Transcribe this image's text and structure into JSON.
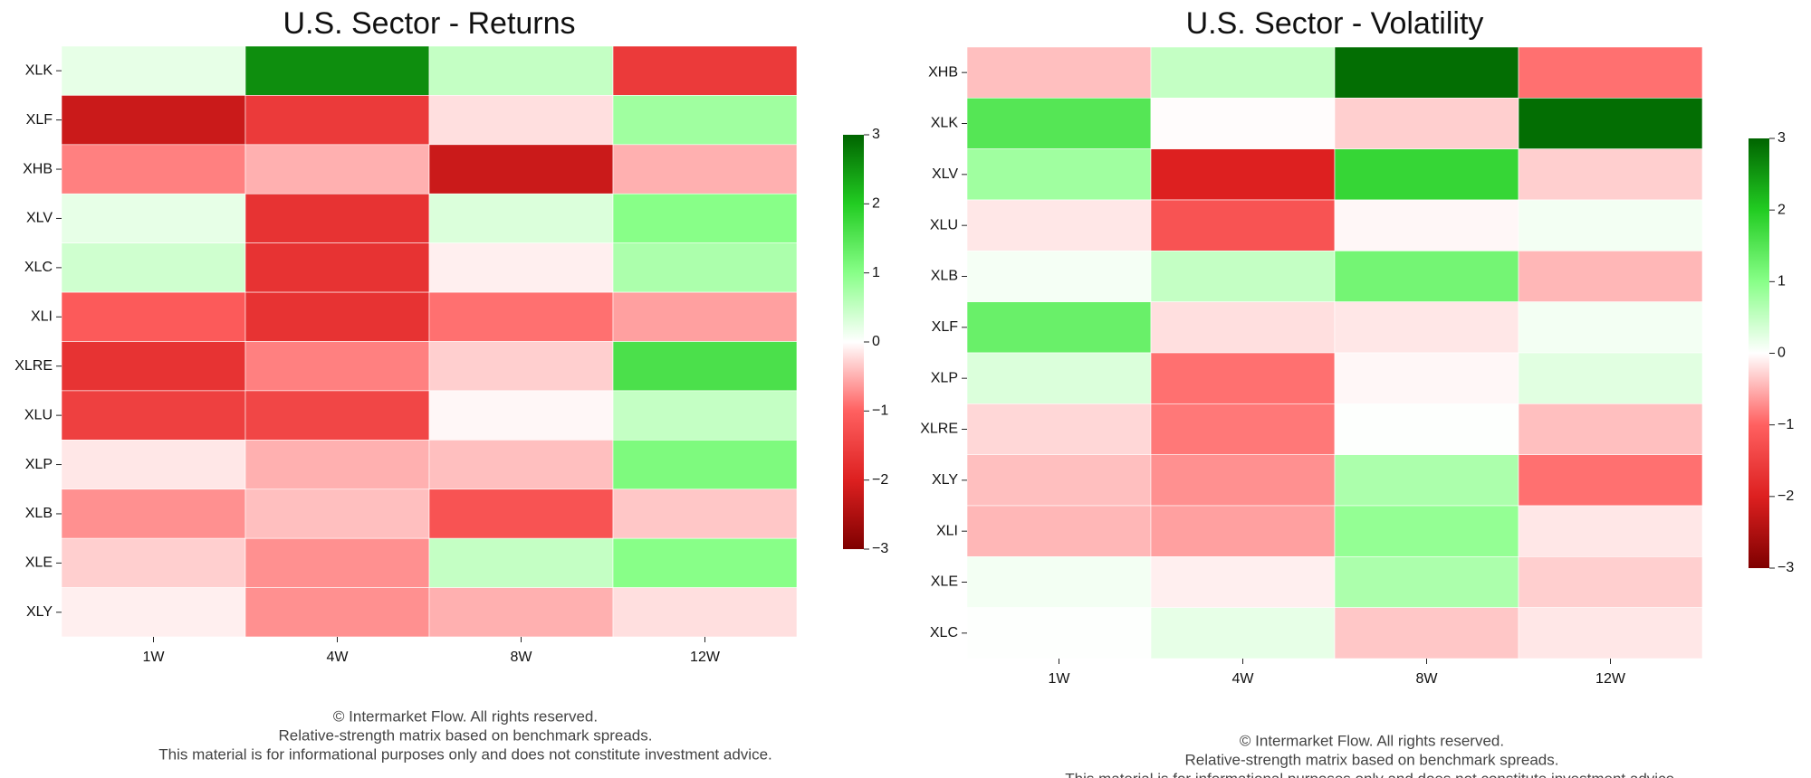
{
  "chart_data": [
    {
      "type": "heatmap",
      "title": "U.S. Sector - Returns",
      "x": [
        "1W",
        "4W",
        "8W",
        "12W"
      ],
      "y": [
        "XLK",
        "XLF",
        "XHB",
        "XLV",
        "XLC",
        "XLI",
        "XLRE",
        "XLU",
        "XLP",
        "XLB",
        "XLE",
        "XLY"
      ],
      "values": [
        [
          0.2,
          2.6,
          0.5,
          -1.6
        ],
        [
          -2.2,
          -1.6,
          -0.2,
          0.8
        ],
        [
          -0.8,
          -0.5,
          -2.2,
          -0.5
        ],
        [
          0.2,
          -1.7,
          0.3,
          1.0
        ],
        [
          0.4,
          -1.7,
          -0.1,
          0.7
        ],
        [
          -1.1,
          -1.7,
          -0.9,
          -0.6
        ],
        [
          -1.7,
          -0.8,
          -0.3,
          1.6
        ],
        [
          -1.5,
          -1.4,
          -0.05,
          0.5
        ],
        [
          -0.15,
          -0.5,
          -0.4,
          1.1
        ],
        [
          -0.7,
          -0.4,
          -1.2,
          -0.35
        ],
        [
          -0.3,
          -0.7,
          0.5,
          1.0
        ],
        [
          -0.1,
          -0.7,
          -0.5,
          -0.2
        ]
      ],
      "zlim": [
        -3,
        3
      ],
      "zticks": [
        {
          "value": -3,
          "label": "−3"
        },
        {
          "value": -2,
          "label": "−2"
        },
        {
          "value": -1,
          "label": "−1"
        },
        0,
        1,
        2,
        3
      ],
      "colormap": [
        "#7f0000",
        "#dd2020",
        "#ff6060",
        "#ffffff",
        "#88ff88",
        "#22cc22",
        "#006400"
      ],
      "notes": [
        "© Intermarket Flow. All rights reserved.",
        "Relative-strength matrix based on benchmark spreads.",
        "This material is for informational purposes only and does not constitute investment advice."
      ]
    },
    {
      "type": "heatmap",
      "title": "U.S. Sector - Volatility",
      "x": [
        "1W",
        "4W",
        "8W",
        "12W"
      ],
      "y": [
        "XHB",
        "XLK",
        "XLV",
        "XLU",
        "XLB",
        "XLF",
        "XLP",
        "XLRE",
        "XLY",
        "XLI",
        "XLE",
        "XLC"
      ],
      "values": [
        [
          -0.4,
          0.5,
          2.9,
          -0.9
        ],
        [
          1.5,
          -0.02,
          -0.3,
          2.9
        ],
        [
          0.8,
          -2.0,
          1.8,
          -0.3
        ],
        [
          -0.15,
          -1.2,
          -0.05,
          0.1
        ],
        [
          0.08,
          0.5,
          1.2,
          -0.45
        ],
        [
          1.3,
          -0.2,
          -0.15,
          0.1
        ],
        [
          0.3,
          -0.9,
          -0.05,
          0.25
        ],
        [
          -0.25,
          -0.85,
          0.02,
          -0.4
        ],
        [
          -0.4,
          -0.7,
          0.7,
          -0.9
        ],
        [
          -0.45,
          -0.6,
          0.9,
          -0.15
        ],
        [
          0.1,
          -0.1,
          0.7,
          -0.3
        ],
        [
          0.02,
          0.2,
          -0.35,
          -0.15
        ]
      ],
      "zlim": [
        -3,
        3
      ],
      "zticks": [
        {
          "value": -3,
          "label": "−3"
        },
        {
          "value": -2,
          "label": "−2"
        },
        {
          "value": -1,
          "label": "−1"
        },
        0,
        1,
        2,
        3
      ],
      "colormap": [
        "#7f0000",
        "#dd2020",
        "#ff6060",
        "#ffffff",
        "#88ff88",
        "#22cc22",
        "#006400"
      ],
      "notes": [
        "© Intermarket Flow. All rights reserved.",
        "Relative-strength matrix based on benchmark spreads.",
        "This material is for informational purposes only and does not constitute investment advice."
      ]
    }
  ]
}
